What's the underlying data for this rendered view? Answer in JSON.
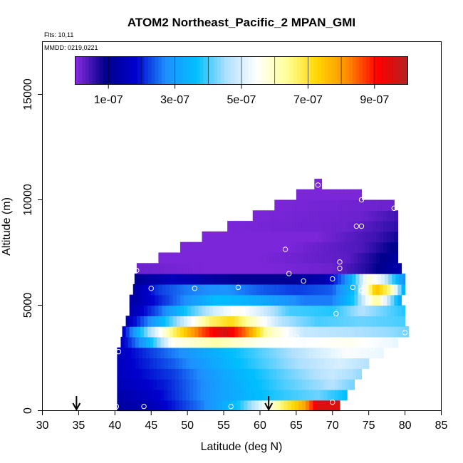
{
  "chart_data": {
    "type": "heatmap",
    "title": "ATOM2 Northeast_Pacific_2 MPAN_GMI",
    "flights_label": "Flts: 10,11",
    "dates_label": "MMDD: 0219,0221",
    "xlabel": "Latitude (deg N)",
    "ylabel": "Altitude (m)",
    "xlim": [
      30,
      85
    ],
    "ylim": [
      0,
      17500
    ],
    "xticks": [
      "30",
      "35",
      "40",
      "45",
      "50",
      "55",
      "60",
      "65",
      "70",
      "75",
      "80",
      "85"
    ],
    "yticks": [
      "0",
      "5000",
      "10000",
      "15000"
    ],
    "colorbar": {
      "range": [
        0,
        1e-06
      ],
      "tick_labels": [
        "1e-07",
        "3e-07",
        "5e-07",
        "7e-07",
        "9e-07"
      ],
      "tick_values": [
        1e-07,
        3e-07,
        5e-07,
        7e-07,
        9e-07
      ],
      "colors": [
        "#8a2be2",
        "#00008b",
        "#0000cd",
        "#1e90ff",
        "#00bfff",
        "#b0e0ff",
        "#ffffff",
        "#ffff99",
        "#ffd700",
        "#ff8c00",
        "#ff0000",
        "#b22222"
      ]
    },
    "bands": [
      {
        "alt_range": [
          0,
          500
        ],
        "lat_range": [
          40.3,
          71
        ],
        "values": [
          [
            40.3,
            1.2e-07
          ],
          [
            45,
            1.5e-07
          ],
          [
            52,
            2.6e-07
          ],
          [
            57,
            3.7e-07
          ],
          [
            61,
            5.5e-07
          ],
          [
            63,
            6.6e-07
          ],
          [
            66,
            7.8e-07
          ],
          [
            68,
            9.5e-07
          ],
          [
            71,
            9.5e-07
          ]
        ]
      },
      {
        "alt_range": [
          500,
          1000
        ],
        "lat_range": [
          40.3,
          72
        ],
        "values": [
          [
            40.3,
            1.3e-07
          ],
          [
            46,
            1.8e-07
          ],
          [
            54,
            3e-07
          ],
          [
            62,
            3.8e-07
          ],
          [
            68,
            4.2e-07
          ],
          [
            72,
            3.6e-07
          ]
        ]
      },
      {
        "alt_range": [
          1000,
          1500
        ],
        "lat_range": [
          40.3,
          73
        ],
        "values": [
          [
            40.3,
            1.5e-07
          ],
          [
            47,
            2e-07
          ],
          [
            55,
            3.1e-07
          ],
          [
            63,
            4e-07
          ],
          [
            70,
            4.6e-07
          ],
          [
            73,
            4.2e-07
          ]
        ]
      },
      {
        "alt_range": [
          1500,
          2000
        ],
        "lat_range": [
          40.3,
          74
        ],
        "values": [
          [
            40.3,
            1.6e-07
          ],
          [
            48,
            2.2e-07
          ],
          [
            56,
            3.3e-07
          ],
          [
            64,
            4.2e-07
          ],
          [
            70,
            4.8e-07
          ],
          [
            74,
            4.4e-07
          ]
        ]
      },
      {
        "alt_range": [
          2000,
          2500
        ],
        "lat_range": [
          40.3,
          75
        ],
        "values": [
          [
            40.3,
            1.6e-07
          ],
          [
            48,
            2.4e-07
          ],
          [
            56,
            3.5e-07
          ],
          [
            64,
            4.4e-07
          ],
          [
            71,
            5e-07
          ],
          [
            75,
            4.6e-07
          ]
        ]
      },
      {
        "alt_range": [
          2500,
          3000
        ],
        "lat_range": [
          40.3,
          77
        ],
        "values": [
          [
            40.3,
            1.6e-07
          ],
          [
            48,
            2.6e-07
          ],
          [
            56,
            3.6e-07
          ],
          [
            64,
            4.5e-07
          ],
          [
            72,
            5.4e-07
          ],
          [
            77,
            5.2e-07
          ]
        ]
      },
      {
        "alt_range": [
          3000,
          3500
        ],
        "lat_range": [
          40.8,
          79
        ],
        "values": [
          [
            40.8,
            1.6e-07
          ],
          [
            44,
            3e-07
          ],
          [
            48,
            5.6e-07
          ],
          [
            54,
            6.2e-07
          ],
          [
            60,
            5.6e-07
          ],
          [
            66,
            5.4e-07
          ],
          [
            72,
            5.6e-07
          ],
          [
            79,
            5.2e-07
          ]
        ]
      },
      {
        "alt_range": [
          3500,
          4000
        ],
        "lat_range": [
          41,
          80.5
        ],
        "values": [
          [
            41,
            1.6e-07
          ],
          [
            44,
            4e-07
          ],
          [
            48,
            6.6e-07
          ],
          [
            52,
            8.6e-07
          ],
          [
            55,
            9.6e-07
          ],
          [
            58,
            8.4e-07
          ],
          [
            61,
            6.2e-07
          ],
          [
            66,
            4.8e-07
          ],
          [
            72,
            4.6e-07
          ],
          [
            78,
            4.4e-07
          ],
          [
            80.5,
            4.2e-07
          ]
        ]
      },
      {
        "alt_range": [
          4000,
          4500
        ],
        "lat_range": [
          41.5,
          80
        ],
        "values": [
          [
            41.5,
            1.4e-07
          ],
          [
            45,
            2.8e-07
          ],
          [
            49,
            4.6e-07
          ],
          [
            53,
            6.6e-07
          ],
          [
            56,
            7.2e-07
          ],
          [
            59,
            6e-07
          ],
          [
            63,
            4.6e-07
          ],
          [
            68,
            4e-07
          ],
          [
            74,
            4.2e-07
          ],
          [
            80,
            4e-07
          ]
        ]
      },
      {
        "alt_range": [
          4500,
          5000
        ],
        "lat_range": [
          42,
          80
        ],
        "values": [
          [
            42,
            1.3e-07
          ],
          [
            46,
            2.4e-07
          ],
          [
            50,
            3.8e-07
          ],
          [
            54,
            5e-07
          ],
          [
            57,
            5.6e-07
          ],
          [
            60,
            5e-07
          ],
          [
            64,
            4e-07
          ],
          [
            70,
            3.8e-07
          ],
          [
            74,
            4.6e-07
          ],
          [
            77,
            4.2e-07
          ],
          [
            80,
            3.8e-07
          ]
        ]
      },
      {
        "alt_range": [
          5000,
          5500
        ],
        "lat_range": [
          42,
          79.5
        ],
        "values": [
          [
            42,
            1.2e-07
          ],
          [
            46,
            2e-07
          ],
          [
            50,
            2.8e-07
          ],
          [
            54,
            3.6e-07
          ],
          [
            58,
            3.4e-07
          ],
          [
            62,
            3e-07
          ],
          [
            66,
            2.6e-07
          ],
          [
            70,
            2.6e-07
          ],
          [
            73,
            3.8e-07
          ],
          [
            76,
            6.4e-07
          ],
          [
            79.5,
            3e-07
          ]
        ]
      },
      {
        "alt_range": [
          5500,
          6000
        ],
        "lat_range": [
          42.5,
          80
        ],
        "values": [
          [
            42.5,
            1.2e-07
          ],
          [
            46,
            2.2e-07
          ],
          [
            50,
            2.6e-07
          ],
          [
            55,
            2.8e-07
          ],
          [
            60,
            2.4e-07
          ],
          [
            65,
            2.2e-07
          ],
          [
            70,
            2.4e-07
          ],
          [
            73,
            3.6e-07
          ],
          [
            76,
            7.6e-07
          ],
          [
            78,
            6.4e-07
          ],
          [
            80,
            3e-07
          ]
        ]
      },
      {
        "alt_range": [
          6000,
          6500
        ],
        "lat_range": [
          42.7,
          80
        ],
        "values": [
          [
            42.7,
            1e-07
          ],
          [
            48,
            1.6e-07
          ],
          [
            54,
            1.2e-07
          ],
          [
            58,
            1e-07
          ],
          [
            64,
            1e-07
          ],
          [
            69,
            1.4e-07
          ],
          [
            72,
            2.8e-07
          ],
          [
            75,
            5.8e-07
          ],
          [
            77,
            5e-07
          ],
          [
            80,
            2.6e-07
          ]
        ]
      },
      {
        "alt_range": [
          6500,
          7000
        ],
        "lat_range": [
          43,
          79.5
        ],
        "values": [
          [
            43,
            2e-08
          ],
          [
            52,
            1e-08
          ],
          [
            62,
            1e-08
          ],
          [
            70,
            2e-08
          ],
          [
            74,
            6e-08
          ],
          [
            77,
            1e-07
          ],
          [
            79.5,
            1.4e-07
          ]
        ]
      },
      {
        "alt_range": [
          7000,
          7500
        ],
        "lat_range": [
          46,
          79
        ],
        "values": [
          [
            46,
            1e-08
          ],
          [
            60,
            1e-08
          ],
          [
            72,
            3e-08
          ],
          [
            76,
            8e-08
          ],
          [
            79,
            1.2e-07
          ]
        ]
      },
      {
        "alt_range": [
          7500,
          8000
        ],
        "lat_range": [
          49,
          79
        ],
        "values": [
          [
            49,
            1e-08
          ],
          [
            64,
            1e-08
          ],
          [
            74,
            4e-08
          ],
          [
            79,
            1e-07
          ]
        ]
      },
      {
        "alt_range": [
          8000,
          8500
        ],
        "lat_range": [
          52,
          79
        ],
        "values": [
          [
            52,
            1e-08
          ],
          [
            68,
            1e-08
          ],
          [
            76,
            5e-08
          ],
          [
            79,
            8e-08
          ]
        ]
      },
      {
        "alt_range": [
          8500,
          9000
        ],
        "lat_range": [
          55.5,
          79
        ],
        "values": [
          [
            55.5,
            1e-08
          ],
          [
            72,
            2e-08
          ],
          [
            79,
            6e-08
          ]
        ]
      },
      {
        "alt_range": [
          9000,
          9500
        ],
        "lat_range": [
          59,
          79
        ],
        "values": [
          [
            59,
            1e-08
          ],
          [
            74,
            2e-08
          ],
          [
            79,
            5e-08
          ]
        ]
      },
      {
        "alt_range": [
          9500,
          10000
        ],
        "lat_range": [
          62,
          78.5
        ],
        "values": [
          [
            62,
            1e-08
          ],
          [
            78.5,
            2e-08
          ]
        ]
      },
      {
        "alt_range": [
          10000,
          10500
        ],
        "lat_range": [
          65,
          74
        ],
        "values": [
          [
            65,
            1e-08
          ],
          [
            74,
            1e-08
          ]
        ]
      },
      {
        "alt_range": [
          10500,
          11000
        ],
        "lat_range": [
          67.5,
          68.5
        ],
        "values": [
          [
            67.5,
            1e-08
          ],
          [
            68.5,
            1e-08
          ]
        ]
      }
    ],
    "sample_points": [
      [
        40.2,
        200
      ],
      [
        44,
        200
      ],
      [
        56,
        200
      ],
      [
        70,
        400
      ],
      [
        40.5,
        2800
      ],
      [
        61.5,
        3150
      ],
      [
        62,
        3200
      ],
      [
        65,
        3500
      ],
      [
        70.8,
        3150
      ],
      [
        71.5,
        3100
      ],
      [
        75.5,
        2950
      ],
      [
        80,
        3700
      ],
      [
        70.5,
        4600
      ],
      [
        45,
        5800
      ],
      [
        51,
        5800
      ],
      [
        57,
        5850
      ],
      [
        72.8,
        5850
      ],
      [
        74,
        5700
      ],
      [
        43,
        6650
      ],
      [
        64,
        6500
      ],
      [
        66,
        6150
      ],
      [
        70,
        6250
      ],
      [
        71,
        6750
      ],
      [
        71,
        7050
      ],
      [
        76,
        6100
      ],
      [
        80,
        6950
      ],
      [
        63.5,
        7650
      ],
      [
        73.3,
        8750
      ],
      [
        74,
        8750
      ],
      [
        74,
        10000
      ],
      [
        78.5,
        9600
      ],
      [
        68,
        10700
      ]
    ],
    "arrow_latitudes": [
      34.7,
      61.2
    ]
  }
}
